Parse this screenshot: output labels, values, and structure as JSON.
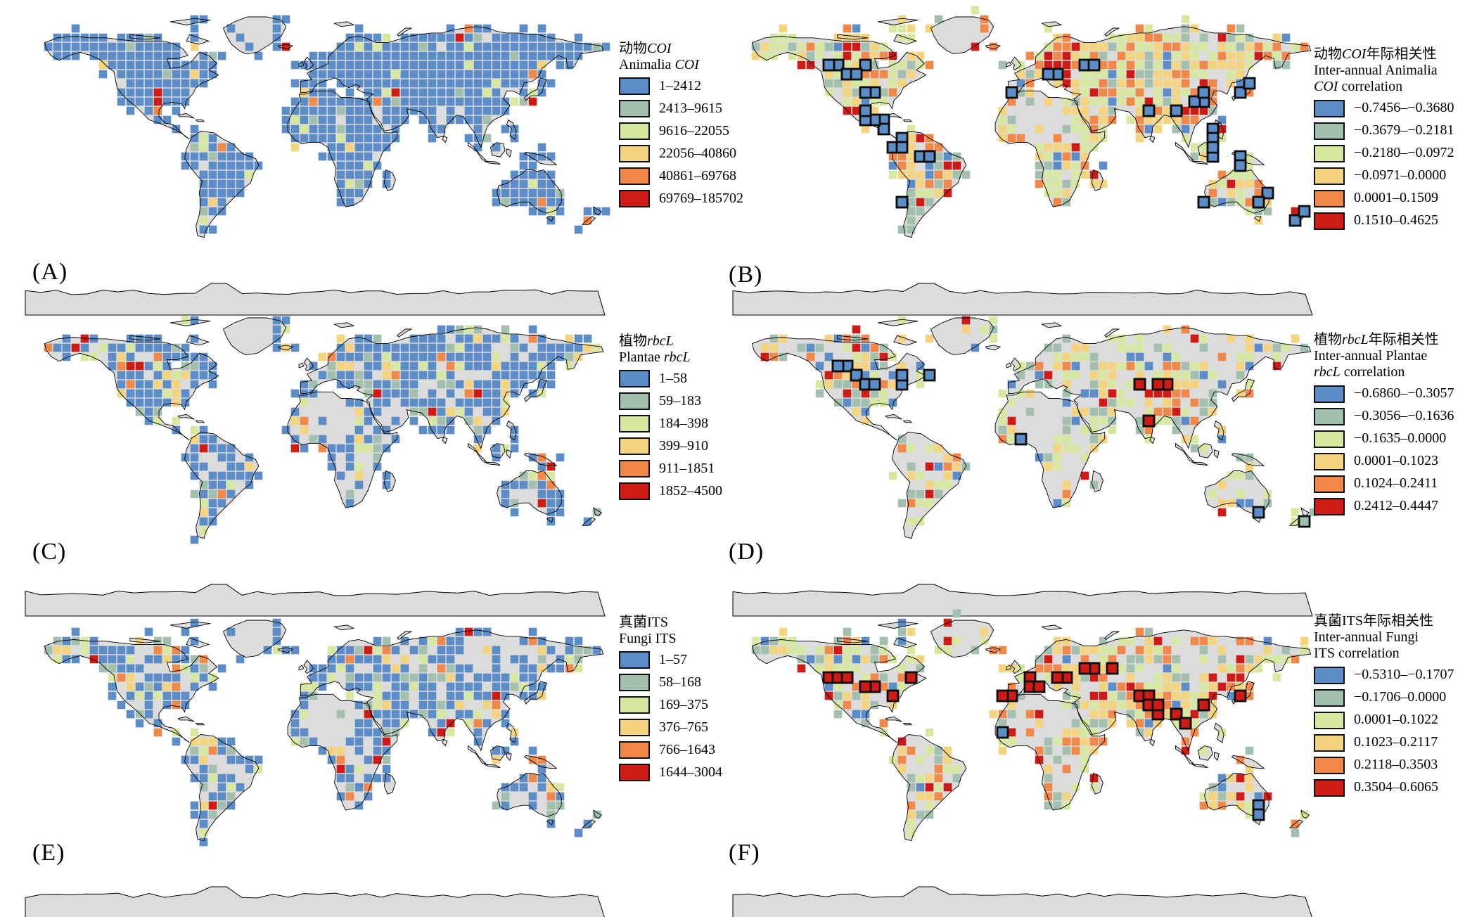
{
  "palette": {
    "classes": [
      "#5d8dc6",
      "#a3bfae",
      "#d7e9a1",
      "#f4d47f",
      "#f0884a",
      "#ce1b16"
    ],
    "land": "#dcdcdc",
    "coastline": "#000000",
    "significant_border": "#0d0d0d",
    "background": "#ffffff"
  },
  "panels": [
    {
      "id": "a",
      "label": "(A)",
      "legend": {
        "title_lines": [
          [
            {
              "text": "动物",
              "italic": false
            },
            {
              "text": "COI",
              "italic": true
            }
          ],
          [
            {
              "text": "Animalia ",
              "italic": false
            },
            {
              "text": "COI",
              "italic": true
            }
          ]
        ],
        "classes": [
          "1–2412",
          "2413–9615",
          "9616–22055",
          "22056–40860",
          "40861–69768",
          "69769–185702"
        ]
      }
    },
    {
      "id": "b",
      "label": "(B)",
      "legend": {
        "title_lines": [
          [
            {
              "text": "动物",
              "italic": false
            },
            {
              "text": "COI",
              "italic": true
            },
            {
              "text": "年际相关性",
              "italic": false
            }
          ],
          [
            {
              "text": "Inter-annual Animalia",
              "italic": false
            }
          ],
          [
            {
              "text": "COI",
              "italic": true
            },
            {
              "text": " correlation",
              "italic": false
            }
          ]
        ],
        "classes": [
          "−0.7456–−0.3680",
          "−0.3679–−0.2181",
          "−0.2180–−0.0972",
          "−0.0971–0.0000",
          "0.0001–0.1509",
          "0.1510–0.4625"
        ]
      }
    },
    {
      "id": "c",
      "label": "(C)",
      "legend": {
        "title_lines": [
          [
            {
              "text": "植物",
              "italic": false
            },
            {
              "text": "rbcL",
              "italic": true
            }
          ],
          [
            {
              "text": "Plantae ",
              "italic": false
            },
            {
              "text": "rbcL",
              "italic": true
            }
          ]
        ],
        "classes": [
          "1–58",
          "59–183",
          "184–398",
          "399–910",
          "911–1851",
          "1852–4500"
        ]
      }
    },
    {
      "id": "d",
      "label": "(D)",
      "legend": {
        "title_lines": [
          [
            {
              "text": "植物",
              "italic": false
            },
            {
              "text": "rbcL",
              "italic": true
            },
            {
              "text": "年际相关性",
              "italic": false
            }
          ],
          [
            {
              "text": "Inter-annual Plantae",
              "italic": false
            }
          ],
          [
            {
              "text": "rbcL",
              "italic": true
            },
            {
              "text": " correlation",
              "italic": false
            }
          ]
        ],
        "classes": [
          "−0.6860–−0.3057",
          "−0.3056–−0.1636",
          "−0.1635–0.0000",
          "0.0001–0.1023",
          "0.1024–0.2411",
          "0.2412–0.4447"
        ]
      }
    },
    {
      "id": "e",
      "label": "(E)",
      "legend": {
        "title_lines": [
          [
            {
              "text": "真菌ITS",
              "italic": false
            }
          ],
          [
            {
              "text": "Fungi ITS",
              "italic": false
            }
          ]
        ],
        "classes": [
          "1–57",
          "58–168",
          "169–375",
          "376–765",
          "766–1643",
          "1644–3004"
        ]
      }
    },
    {
      "id": "f",
      "label": "(F)",
      "legend": {
        "title_lines": [
          [
            {
              "text": "真菌ITS年际相关性",
              "italic": false
            }
          ],
          [
            {
              "text": "Inter-annual Fungi",
              "italic": false
            }
          ],
          [
            {
              "text": "ITS correlation",
              "italic": false
            }
          ]
        ],
        "classes": [
          "−0.5310–−0.1707",
          "−0.1706–0.0000",
          "0.0001–0.1022",
          "0.1023–0.2117",
          "0.2118–0.3503",
          "0.3504–0.6065"
        ]
      }
    }
  ]
}
